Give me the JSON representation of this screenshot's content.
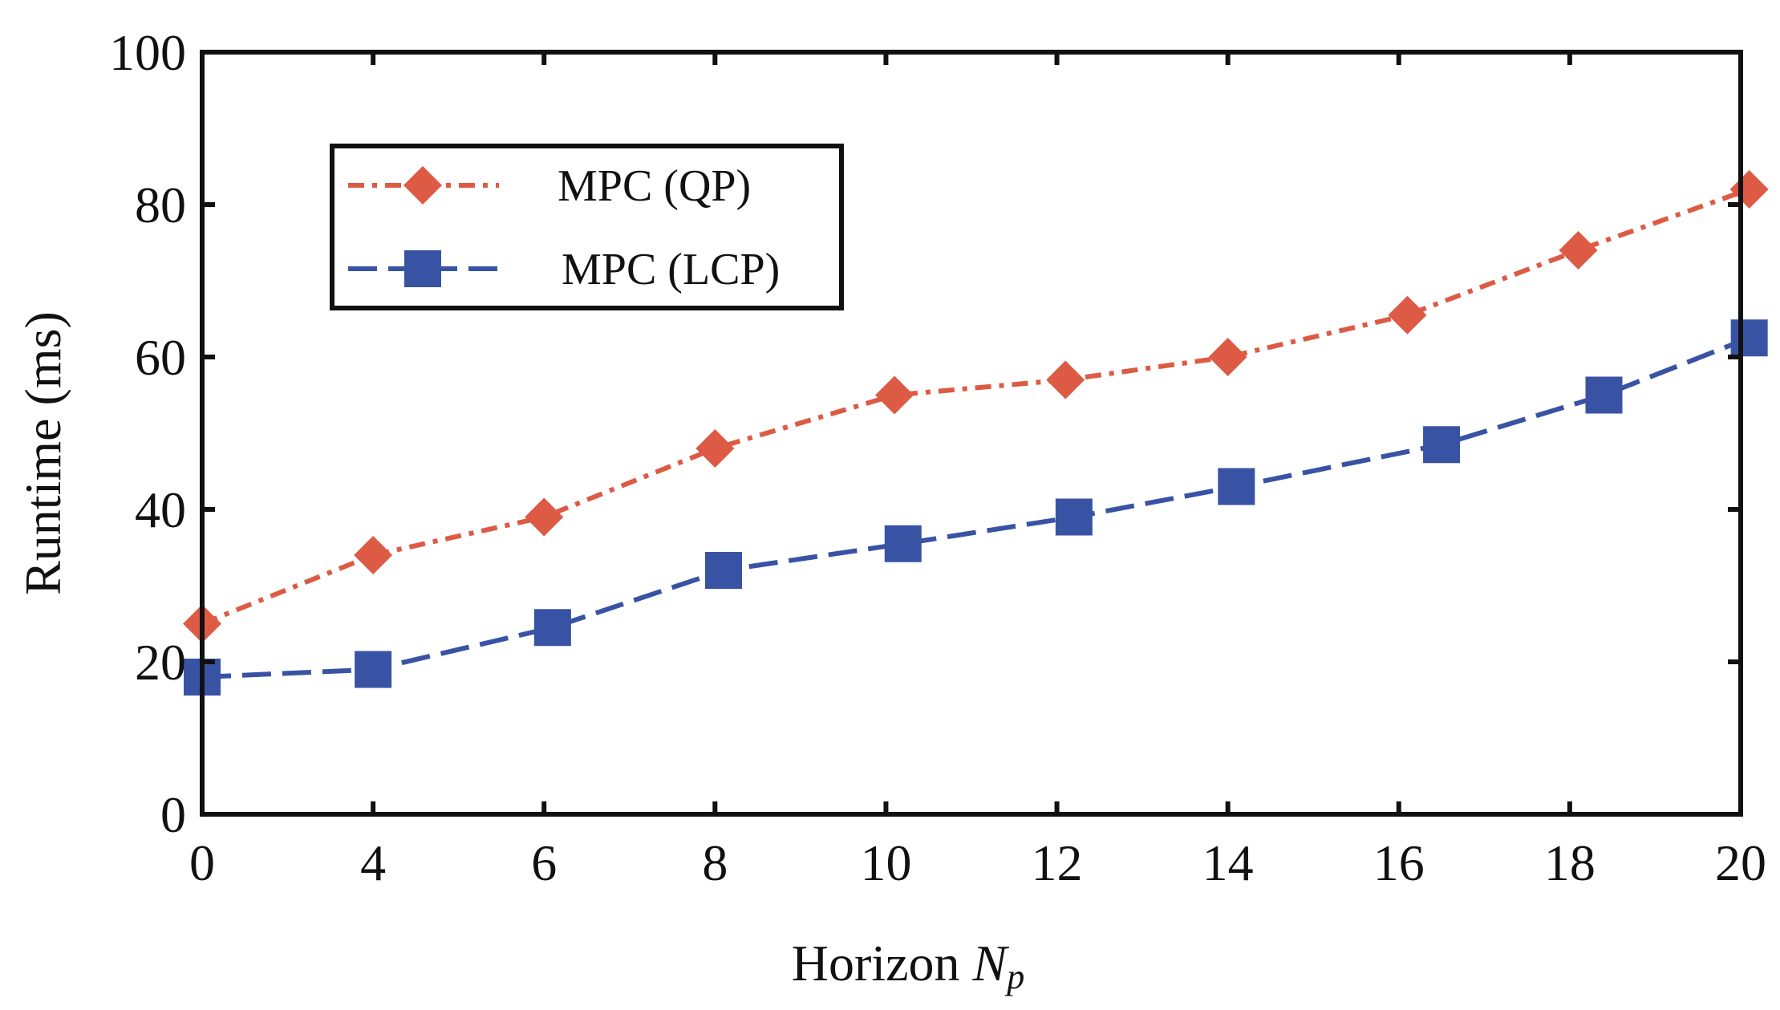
{
  "chart_data": {
    "type": "line",
    "title": "",
    "xlabel_main": "Horizon ",
    "xlabel_var": "N",
    "xlabel_sub": "p",
    "ylabel": "Runtime (ms)",
    "categories": [
      "0",
      "4",
      "6",
      "8",
      "10",
      "12",
      "14",
      "16",
      "18",
      "20"
    ],
    "ylim": [
      0,
      100
    ],
    "yticks": [
      "0",
      "20",
      "40",
      "60",
      "80",
      "100"
    ],
    "legend_position": "upper-left",
    "series": [
      {
        "name": "MPC (QP)",
        "color": "#dd5a44",
        "marker": "diamond",
        "dash": "dotted-dash",
        "x_positions": [
          0,
          1,
          2,
          3,
          4.05,
          5.05,
          6,
          7.05,
          8.05,
          9.05
        ],
        "values": [
          25,
          34,
          39,
          48,
          55,
          57,
          60,
          65.5,
          74,
          82
        ]
      },
      {
        "name": "MPC (LCP)",
        "color": "#3953a4",
        "marker": "square",
        "dash": "dashed",
        "x_positions": [
          0,
          1,
          2.05,
          3.05,
          4.1,
          5.1,
          6.05,
          7.25,
          8.2,
          9.05
        ],
        "values": [
          18,
          19,
          24.5,
          32,
          35.5,
          39,
          43,
          48.5,
          55,
          62.5
        ]
      }
    ]
  }
}
